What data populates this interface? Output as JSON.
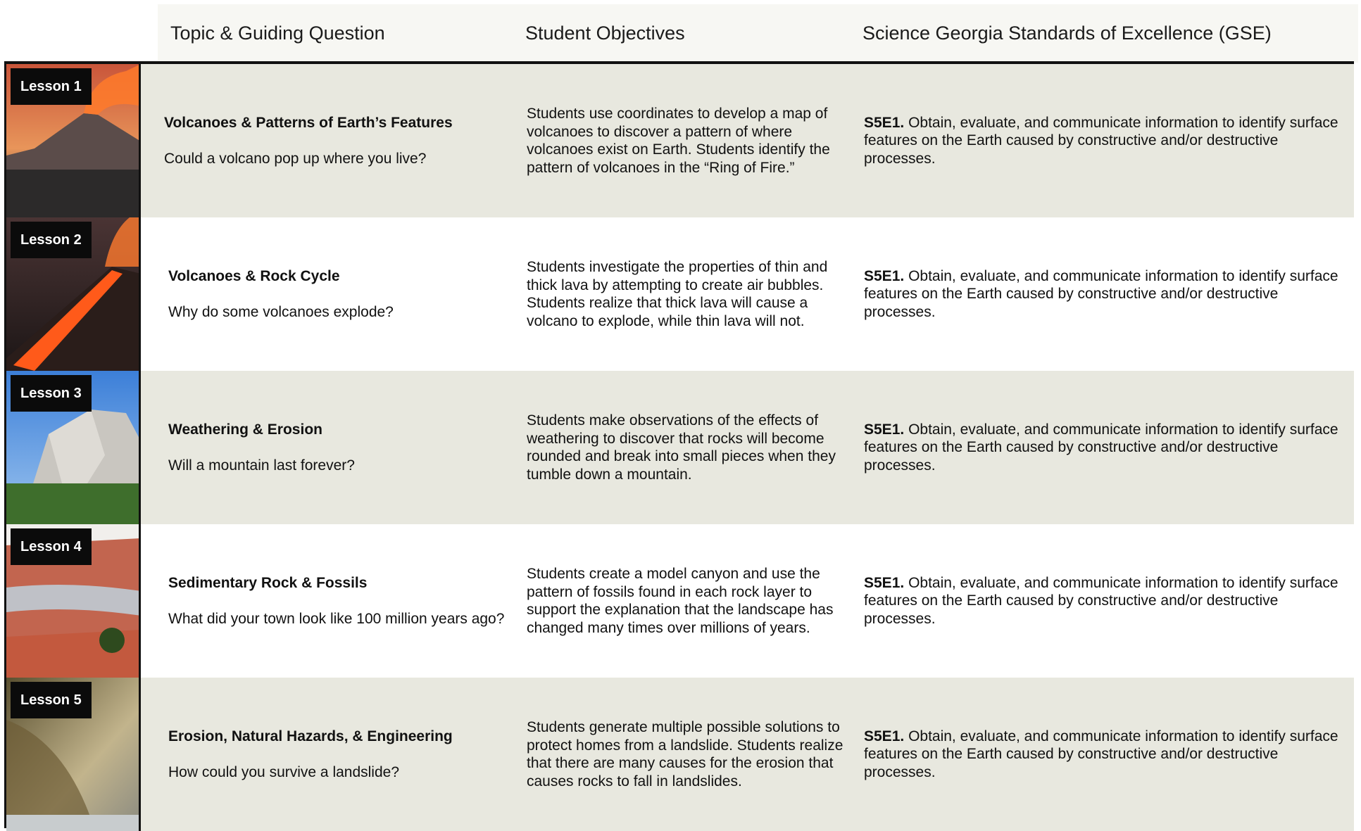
{
  "header": {
    "columns": [
      "Topic & Guiding Question",
      "Student Objectives",
      "Science Georgia Standards of Excellence (GSE)"
    ]
  },
  "rows": [
    {
      "lesson": "Lesson 1",
      "topic": "Volcanoes & Patterns of Earth’s Features",
      "question": "Could a volcano pop up where you live?",
      "objectives": "Students use coordinates to develop a map of volcanoes to discover a pattern of where volcanoes exist on Earth. Students identify the pattern of volcanoes in the “Ring of Fire.”",
      "standard_code": "S5E1.",
      "standard_text": "Obtain, evaluate, and communicate information to identify surface features on the Earth caused by constructive and/or destructive processes."
    },
    {
      "lesson": "Lesson 2",
      "topic": "Volcanoes & Rock Cycle",
      "question": "Why do some volcanoes explode?",
      "objectives": "Students investigate the properties of thin and thick lava by attempting to create air bubbles. Students realize that thick lava will cause a volcano to explode, while thin lava will not.",
      "standard_code": "S5E1.",
      "standard_text": "Obtain, evaluate, and communicate information to identify surface features on the Earth caused by constructive and/or destructive processes."
    },
    {
      "lesson": "Lesson 3",
      "topic": "Weathering & Erosion",
      "question": "Will a mountain last forever?",
      "objectives": "Students make observations of the effects of weathering to discover that rocks will become rounded and break into small pieces when they tumble down a mountain.",
      "standard_code": "S5E1.",
      "standard_text": "Obtain, evaluate, and communicate information to identify surface features on the Earth caused by constructive and/or destructive processes."
    },
    {
      "lesson": "Lesson 4",
      "topic": "Sedimentary Rock & Fossils",
      "question": "What did your town look like 100 million years ago?",
      "objectives": "Students create a model canyon and use the pattern of fossils found in each rock layer to support the explanation that the landscape has changed many times over millions of years.",
      "standard_code": "S5E1.",
      "standard_text": "Obtain, evaluate, and communicate information to identify surface features on the Earth caused by constructive and/or destructive processes."
    },
    {
      "lesson": "Lesson 5",
      "topic": "Erosion, Natural Hazards, & Engineering",
      "question": "How could you survive a landslide?",
      "objectives": "Students generate multiple possible solutions to protect homes from a landslide. Students realize that there are many causes for the erosion that causes rocks to fall in landslides.",
      "standard_code": "S5E1.",
      "standard_text": "Obtain, evaluate, and communicate information to identify surface features on the Earth caused by constructive and/or destructive processes."
    }
  ]
}
